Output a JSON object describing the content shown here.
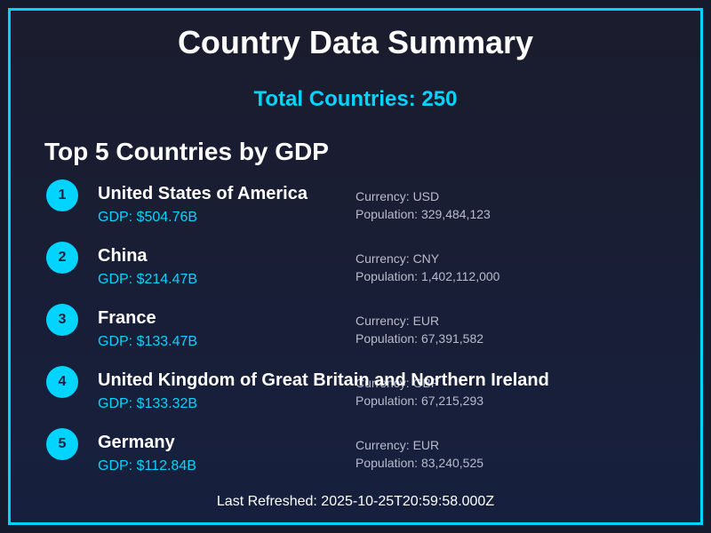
{
  "title": "Country Data Summary",
  "total_countries": "Total Countries: 250",
  "section_heading": "Top 5 Countries by GDP",
  "countries": [
    {
      "rank": "1",
      "name": "United States of America",
      "gdp": "GDP: $504.76B",
      "currency": "Currency: USD",
      "population": "Population: 329,484,123"
    },
    {
      "rank": "2",
      "name": "China",
      "gdp": "GDP: $214.47B",
      "currency": "Currency: CNY",
      "population": "Population: 1,402,112,000"
    },
    {
      "rank": "3",
      "name": "France",
      "gdp": "GDP: $133.47B",
      "currency": "Currency: EUR",
      "population": "Population: 67,391,582"
    },
    {
      "rank": "4",
      "name": "United Kingdom of Great Britain and Northern Ireland",
      "gdp": "GDP: $133.32B",
      "currency": "Currency: GBP",
      "population": "Population: 67,215,293"
    },
    {
      "rank": "5",
      "name": "Germany",
      "gdp": "GDP: $112.84B",
      "currency": "Currency: EUR",
      "population": "Population: 83,240,525"
    }
  ],
  "footer": "Last Refreshed: 2025-10-25T20:59:58.000Z",
  "colors": {
    "accent": "#00d4ff",
    "background": "#16203e",
    "text": "#ffffff",
    "muted": "#b8bccc"
  }
}
